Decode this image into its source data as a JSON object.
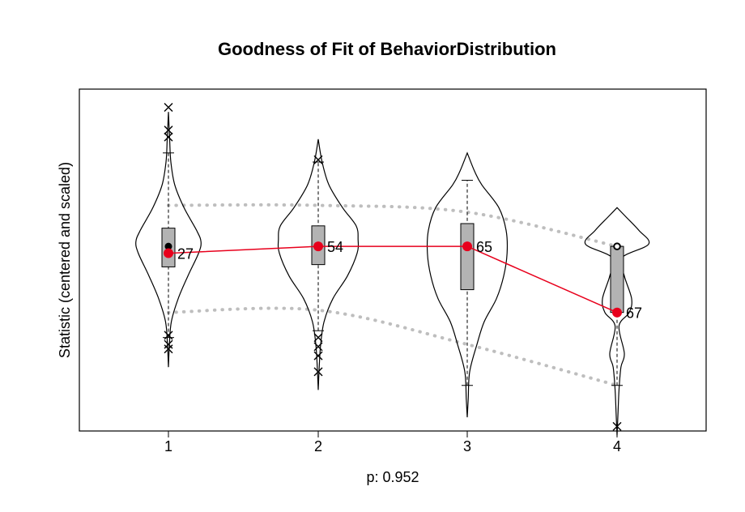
{
  "chart_data": {
    "type": "violin",
    "title": "Goodness of Fit of BehaviorDistribution",
    "xlabel": "p: 0.952",
    "ylabel": "Statistic (centered and scaled)",
    "categories": [
      "1",
      "2",
      "3",
      "4"
    ],
    "ylim": [
      -3.9,
      3.6
    ],
    "grid": false,
    "legend": "none",
    "colors": {
      "observed": "#e8001c",
      "box": "#b3b3b3",
      "envelope": "#bebebe",
      "outline": "#000000"
    },
    "violins": [
      {
        "category": "1",
        "median": 0.15,
        "q1": -0.3,
        "q3": 0.55,
        "whisker_low": -1.85,
        "whisker_high": 2.2,
        "range": [
          -2.5,
          3.1
        ],
        "outliers": [
          3.2,
          2.7,
          2.55,
          -1.8,
          -2.0,
          -2.1
        ],
        "profile": [
          [
            -2.5,
            0.0
          ],
          [
            -2.0,
            0.2
          ],
          [
            -1.5,
            0.6
          ],
          [
            -1.0,
            2.0
          ],
          [
            -0.5,
            4.0
          ],
          [
            0.0,
            6.2
          ],
          [
            0.25,
            6.7
          ],
          [
            0.5,
            5.8
          ],
          [
            1.0,
            3.2
          ],
          [
            1.5,
            1.3
          ],
          [
            2.0,
            0.5
          ],
          [
            2.5,
            0.25
          ],
          [
            3.1,
            0.0
          ]
        ]
      },
      {
        "category": "2",
        "median": 0.15,
        "q1": -0.25,
        "q3": 0.6,
        "whisker_low": -1.7,
        "whisker_high": 2.0,
        "range": [
          -3.0,
          2.5
        ],
        "outliers": [
          2.05,
          -1.85,
          -2.05,
          -2.25,
          -2.6
        ],
        "profile": [
          [
            -3.0,
            0.0
          ],
          [
            -2.5,
            0.2
          ],
          [
            -2.0,
            0.5
          ],
          [
            -1.5,
            1.2
          ],
          [
            -1.0,
            3.0
          ],
          [
            -0.5,
            6.0
          ],
          [
            0.0,
            8.0
          ],
          [
            0.3,
            8.2
          ],
          [
            0.6,
            7.8
          ],
          [
            1.0,
            5.0
          ],
          [
            1.5,
            2.2
          ],
          [
            2.0,
            0.8
          ],
          [
            2.5,
            0.0
          ]
        ]
      },
      {
        "category": "3",
        "median": 0.15,
        "q1": -0.8,
        "q3": 0.65,
        "whisker_low": -2.9,
        "whisker_high": 1.6,
        "range": [
          -3.6,
          2.2
        ],
        "outliers": [],
        "profile": [
          [
            -3.6,
            0.0
          ],
          [
            -3.2,
            0.2
          ],
          [
            -2.6,
            0.5
          ],
          [
            -2.0,
            2.0
          ],
          [
            -1.5,
            3.5
          ],
          [
            -1.0,
            6.0
          ],
          [
            -0.5,
            7.5
          ],
          [
            0.0,
            8.2
          ],
          [
            0.5,
            8.0
          ],
          [
            1.0,
            6.5
          ],
          [
            1.5,
            3.0
          ],
          [
            1.8,
            1.5
          ],
          [
            2.2,
            0.0
          ]
        ]
      },
      {
        "category": "4",
        "median": 0.15,
        "q1": -1.3,
        "q3": 0.15,
        "whisker_low": -2.9,
        "whisker_high": 0.15,
        "range": [
          -4.0,
          1.0
        ],
        "outliers": [
          -3.8
        ],
        "profile": [
          [
            -4.0,
            0.0
          ],
          [
            -3.5,
            0.2
          ],
          [
            -3.0,
            0.4
          ],
          [
            -2.5,
            0.8
          ],
          [
            -2.2,
            1.5
          ],
          [
            -1.6,
            0.4
          ],
          [
            -1.3,
            2.5
          ],
          [
            -1.0,
            3.0
          ],
          [
            -0.5,
            1.5
          ],
          [
            -0.1,
            1.0
          ],
          [
            0.2,
            6.5
          ],
          [
            0.5,
            4.5
          ],
          [
            0.8,
            1.8
          ],
          [
            1.0,
            0.0
          ]
        ]
      }
    ],
    "median_markers": [
      {
        "category": "1",
        "value": 0.15,
        "style": "filled"
      },
      {
        "category": "4",
        "value": 0.15,
        "style": "open"
      }
    ],
    "observed": {
      "x": [
        "1",
        "2",
        "3",
        "4"
      ],
      "y": [
        0.0,
        0.15,
        0.15,
        -1.3
      ],
      "labels": [
        "27",
        "54",
        "65",
        "67"
      ]
    },
    "envelope_upper": {
      "x": [
        "1",
        "2",
        "3",
        "4"
      ],
      "y": [
        1.05,
        1.05,
        0.9,
        0.15
      ]
    },
    "envelope_lower": {
      "x": [
        "1",
        "2",
        "3",
        "4"
      ],
      "y": [
        -1.3,
        -1.25,
        -2.0,
        -2.9
      ]
    }
  }
}
